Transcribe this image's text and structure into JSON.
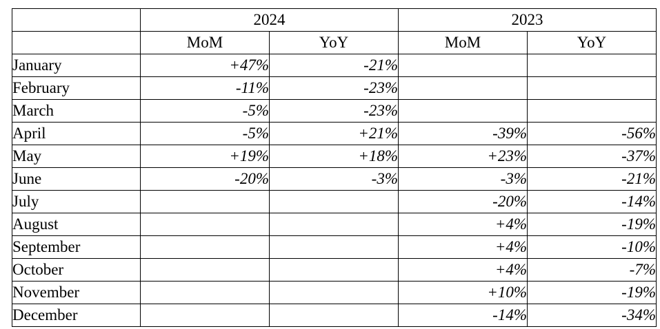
{
  "header": {
    "corner": "",
    "years": [
      "2024",
      "2023"
    ],
    "subheaders": [
      "MoM",
      "YoY",
      "MoM",
      "YoY"
    ]
  },
  "rows": [
    {
      "month": "January",
      "values": [
        "+47%",
        "-21%",
        "",
        ""
      ]
    },
    {
      "month": "February",
      "values": [
        "-11%",
        "-23%",
        "",
        ""
      ]
    },
    {
      "month": "March",
      "values": [
        "-5%",
        "-23%",
        "",
        ""
      ]
    },
    {
      "month": "April",
      "values": [
        "-5%",
        "+21%",
        "-39%",
        "-56%"
      ]
    },
    {
      "month": "May",
      "values": [
        "+19%",
        "+18%",
        "+23%",
        "-37%"
      ]
    },
    {
      "month": "June",
      "values": [
        "-20%",
        "-3%",
        "-3%",
        "-21%"
      ]
    },
    {
      "month": "July",
      "values": [
        "",
        "",
        "-20%",
        "-14%"
      ]
    },
    {
      "month": "August",
      "values": [
        "",
        "",
        "+4%",
        "-19%"
      ]
    },
    {
      "month": "September",
      "values": [
        "",
        "",
        "+4%",
        "-10%"
      ]
    },
    {
      "month": "October",
      "values": [
        "",
        "",
        "+4%",
        "-7%"
      ]
    },
    {
      "month": "November",
      "values": [
        "",
        "",
        "+10%",
        "-19%"
      ]
    },
    {
      "month": "December",
      "values": [
        "",
        "",
        "-14%",
        "-34%"
      ]
    }
  ]
}
